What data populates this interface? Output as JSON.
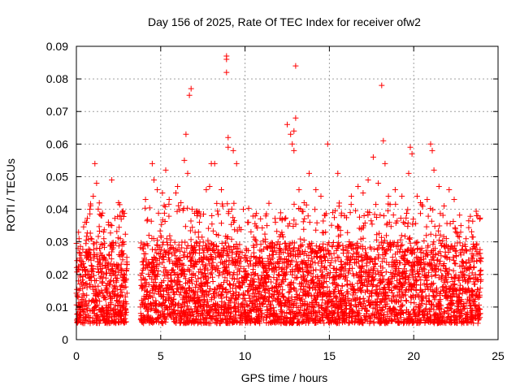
{
  "chart_data": {
    "type": "scatter",
    "title": "Day 156 of 2025, Rate Of TEC Index for receiver ofw2",
    "xlabel": "GPS time / hours",
    "ylabel": "ROTI / TECUs",
    "xlim": [
      0,
      25
    ],
    "ylim": [
      0,
      0.09
    ],
    "x_ticks": [
      0,
      5,
      10,
      15,
      20,
      25
    ],
    "x_tick_labels": [
      "0",
      "5",
      "10",
      "15",
      "20",
      "25"
    ],
    "y_ticks": [
      0,
      0.01,
      0.02,
      0.03,
      0.04,
      0.05,
      0.06,
      0.07,
      0.08,
      0.09
    ],
    "y_tick_labels": [
      "0",
      "0.01",
      "0.02",
      "0.03",
      "0.04",
      "0.05",
      "0.06",
      "0.07",
      "0.08",
      "0.09"
    ],
    "grid": true,
    "marker": "+",
    "marker_color": "#ff0000",
    "series": [
      {
        "name": "ROTI",
        "coverage_hours": [
          [
            0,
            3.0
          ],
          [
            3.8,
            24.0
          ]
        ],
        "typical_range": [
          0.005,
          0.03
        ],
        "points": [
          [
            0.1,
            0.028
          ],
          [
            0.3,
            0.024
          ],
          [
            0.6,
            0.036
          ],
          [
            0.8,
            0.04
          ],
          [
            1.0,
            0.044
          ],
          [
            1.1,
            0.054
          ],
          [
            1.2,
            0.048
          ],
          [
            1.5,
            0.038
          ],
          [
            1.9,
            0.036
          ],
          [
            2.1,
            0.049
          ],
          [
            2.5,
            0.042
          ],
          [
            2.6,
            0.031
          ],
          [
            3.0,
            0.023
          ],
          [
            4.1,
            0.043
          ],
          [
            4.3,
            0.032
          ],
          [
            4.5,
            0.054
          ],
          [
            4.6,
            0.049
          ],
          [
            4.8,
            0.046
          ],
          [
            5.1,
            0.045
          ],
          [
            5.3,
            0.052
          ],
          [
            5.5,
            0.043
          ],
          [
            5.9,
            0.045
          ],
          [
            6.0,
            0.047
          ],
          [
            6.2,
            0.042
          ],
          [
            6.4,
            0.055
          ],
          [
            6.5,
            0.063
          ],
          [
            6.6,
            0.051
          ],
          [
            6.7,
            0.075
          ],
          [
            6.8,
            0.077
          ],
          [
            7.3,
            0.036
          ],
          [
            7.7,
            0.046
          ],
          [
            7.9,
            0.047
          ],
          [
            8.0,
            0.054
          ],
          [
            8.2,
            0.054
          ],
          [
            8.6,
            0.046
          ],
          [
            8.9,
            0.087
          ],
          [
            8.9,
            0.086
          ],
          [
            8.9,
            0.082
          ],
          [
            9.0,
            0.062
          ],
          [
            9.0,
            0.059
          ],
          [
            9.3,
            0.058
          ],
          [
            9.5,
            0.054
          ],
          [
            9.9,
            0.04
          ],
          [
            10.2,
            0.036
          ],
          [
            10.6,
            0.038
          ],
          [
            11.3,
            0.035
          ],
          [
            11.8,
            0.036
          ],
          [
            12.2,
            0.037
          ],
          [
            12.5,
            0.066
          ],
          [
            12.7,
            0.063
          ],
          [
            12.8,
            0.06
          ],
          [
            12.9,
            0.064
          ],
          [
            12.9,
            0.058
          ],
          [
            13.0,
            0.084
          ],
          [
            13.0,
            0.068
          ],
          [
            13.2,
            0.046
          ],
          [
            13.5,
            0.042
          ],
          [
            13.8,
            0.051
          ],
          [
            14.2,
            0.046
          ],
          [
            14.5,
            0.044
          ],
          [
            14.9,
            0.06
          ],
          [
            15.2,
            0.039
          ],
          [
            15.5,
            0.051
          ],
          [
            15.9,
            0.038
          ],
          [
            16.3,
            0.044
          ],
          [
            16.7,
            0.047
          ],
          [
            17.0,
            0.045
          ],
          [
            17.3,
            0.049
          ],
          [
            17.6,
            0.056
          ],
          [
            17.9,
            0.048
          ],
          [
            18.1,
            0.078
          ],
          [
            18.2,
            0.061
          ],
          [
            18.3,
            0.054
          ],
          [
            18.5,
            0.044
          ],
          [
            18.9,
            0.046
          ],
          [
            19.3,
            0.044
          ],
          [
            19.7,
            0.051
          ],
          [
            19.8,
            0.059
          ],
          [
            19.9,
            0.057
          ],
          [
            20.2,
            0.044
          ],
          [
            20.4,
            0.042
          ],
          [
            20.8,
            0.043
          ],
          [
            21.0,
            0.06
          ],
          [
            21.1,
            0.058
          ],
          [
            21.2,
            0.052
          ],
          [
            21.5,
            0.047
          ],
          [
            21.8,
            0.041
          ],
          [
            22.1,
            0.046
          ],
          [
            22.4,
            0.043
          ],
          [
            22.8,
            0.035
          ],
          [
            23.1,
            0.031
          ],
          [
            23.5,
            0.028
          ],
          [
            23.8,
            0.038
          ]
        ]
      }
    ]
  }
}
